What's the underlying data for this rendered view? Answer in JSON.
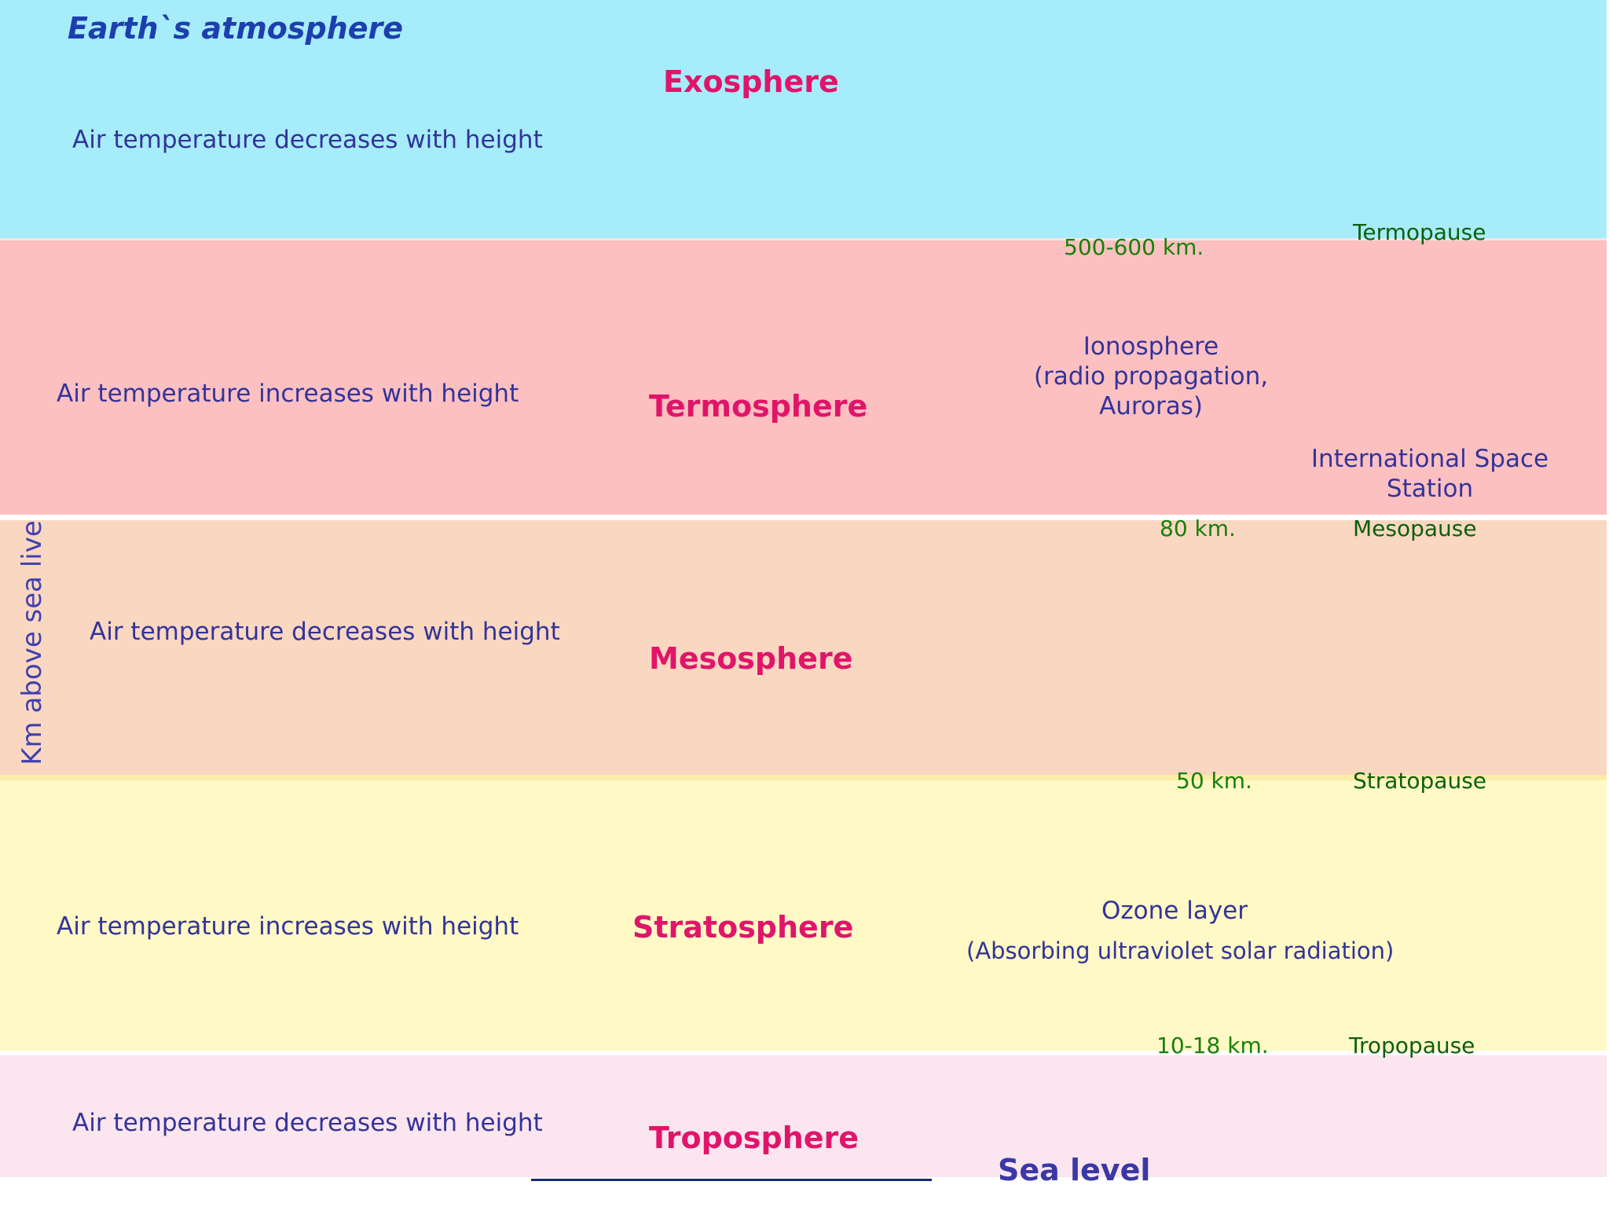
{
  "title": "Earth`s atmosphere",
  "axis_label": "Km above sea live",
  "layers": {
    "exosphere": {
      "name": "Exosphere",
      "description": "Air temperature decreases with height",
      "color": "#a6ecfa"
    },
    "termosphere": {
      "name": "Termosphere",
      "description": "Air temperature increases with height",
      "color": "#fdc0c0"
    },
    "mesosphere": {
      "name": "Mesosphere",
      "description": "Air temperature decreases with height",
      "color": "#fad7c1"
    },
    "stratosphere": {
      "name": "Stratosphere",
      "description": "Air temperature increases with height",
      "color": "#fef9c5"
    },
    "troposphere": {
      "name": "Troposphere",
      "description": "Air temperature decreases with height",
      "color": "#fbe5ef"
    }
  },
  "boundaries": {
    "termopause": {
      "altitude": "500-600 km.",
      "name": "Termopause"
    },
    "mesopause": {
      "altitude": "80 km.",
      "name": "Mesopause"
    },
    "stratopause": {
      "altitude": "50 km.",
      "name": "Stratopause"
    },
    "tropopause": {
      "altitude": "10-18 km.",
      "name": "Tropopause"
    }
  },
  "notes": {
    "ionosphere": {
      "line1": "Ionosphere",
      "line2": "(radio propagation,",
      "line3": "Auroras)"
    },
    "iss": {
      "line1": "International Space",
      "line2": "Station"
    },
    "ozone": {
      "title": "Ozone layer",
      "subtitle": "(Absorbing ultraviolet solar radiation)"
    }
  },
  "sea_level": "Sea level",
  "colors": {
    "layer_name": "#e0156a",
    "description": "#33339a",
    "altitude": "#16800a"
  }
}
